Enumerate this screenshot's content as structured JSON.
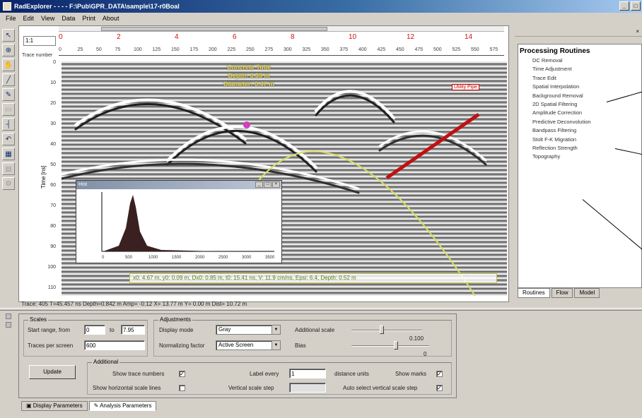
{
  "window": {
    "title": "RadExplorer - - - - F:\\Pub\\GPR_DATA\\sample\\17-r0Boal"
  },
  "menu": [
    "File",
    "Edit",
    "View",
    "Data",
    "Print",
    "About"
  ],
  "toolbar_icons": [
    "pointer-icon",
    "zoom-icon",
    "hand-icon",
    "line-icon",
    "pen-icon",
    "marker-icon",
    "ruler-icon",
    "undo-icon",
    "grid-icon",
    "layers-icon",
    "settings-icon"
  ],
  "plot": {
    "zoom_value": "1:1",
    "trace_label": "Trace number",
    "depth_label": "Time [ns]",
    "red_ruler": [
      "0",
      "2",
      "4",
      "6",
      "8",
      "10",
      "12",
      "14"
    ],
    "trace_ticks": [
      "0",
      "25",
      "50",
      "75",
      "100",
      "125",
      "150",
      "175",
      "200",
      "225",
      "250",
      "275",
      "300",
      "325",
      "350",
      "375",
      "400",
      "425",
      "450",
      "475",
      "500",
      "525",
      "550",
      "575"
    ],
    "depth_ticks": [
      "0",
      "10",
      "20",
      "30",
      "40",
      "50",
      "60",
      "70",
      "80",
      "90",
      "100",
      "110"
    ],
    "annotation_lines": [
      "Concrete Tube",
      "Depth: 0.39 m",
      "Diameter: 0.47 m"
    ],
    "pipe_label": "Utility Pipe",
    "footer_readout": "x0: 4.67 m, y0: 0.09 m, Dx0: 0.85 m, t0: 15.41 ns, V: 11.9 cm/ns, Epsi: 6.4, Depth: 0.52 m",
    "status": "Trace: 405  T=45.457 ns  Depth=0.842 m  Amp= -0.12  X= 13.77 m  Y= 0.00 m  Dist= 10.72 m"
  },
  "histogram": {
    "title": "Hist",
    "x_ticks": [
      "0",
      "500",
      "1000",
      "1500",
      "2000",
      "2500",
      "3000",
      "3500"
    ],
    "y_ticks": [
      "",
      "",
      "",
      ""
    ]
  },
  "right_panel": {
    "title": "Processing Routines",
    "routines": [
      "DC Removal",
      "Time Adjustment",
      "Trace Edit",
      "Spatial Interpolation",
      "Background Removal",
      "2D Spatial Filtering",
      "Amplitude Correction",
      "Predictive Deconvolution",
      "Bandpass Filtering",
      "Stolt F-K Migration",
      "Reflection Strength",
      "Topography"
    ],
    "tabs": [
      "Routines",
      "Flow",
      "Model"
    ]
  },
  "params": {
    "scales_title": "Scales",
    "start_depth_label": "Start range, from",
    "start_depth_value": "0",
    "to_label": "to",
    "to_value": "7.95",
    "traces_per_screen_label": "Traces per screen",
    "traces_per_screen_value": "600",
    "adjustments_title": "Adjustments",
    "display_mode_label": "Display mode",
    "display_mode_value": "Gray",
    "normalizing_label": "Normalizing factor",
    "normalizing_value": "Active Screen",
    "additional_scale_label": "Additional scale",
    "additional_scale_value": "0.100",
    "bias_label": "Bias",
    "bias_value": "0",
    "update_label": "Update",
    "additional_title": "Additional",
    "show_trace_numbers": "Show trace numbers",
    "show_horizontal": "Show horizontal scale lines",
    "label_every_label": "Label every",
    "label_every_value": "1",
    "distance_units": "distance units",
    "show_marks": "Show marks",
    "vertical_step_label": "Vertical scale step",
    "vertical_step_value": "",
    "auto_vertical": "Auto select vertical scale step"
  },
  "bottom_tabs": [
    "Display Parameters",
    "Analysis Parameters"
  ]
}
